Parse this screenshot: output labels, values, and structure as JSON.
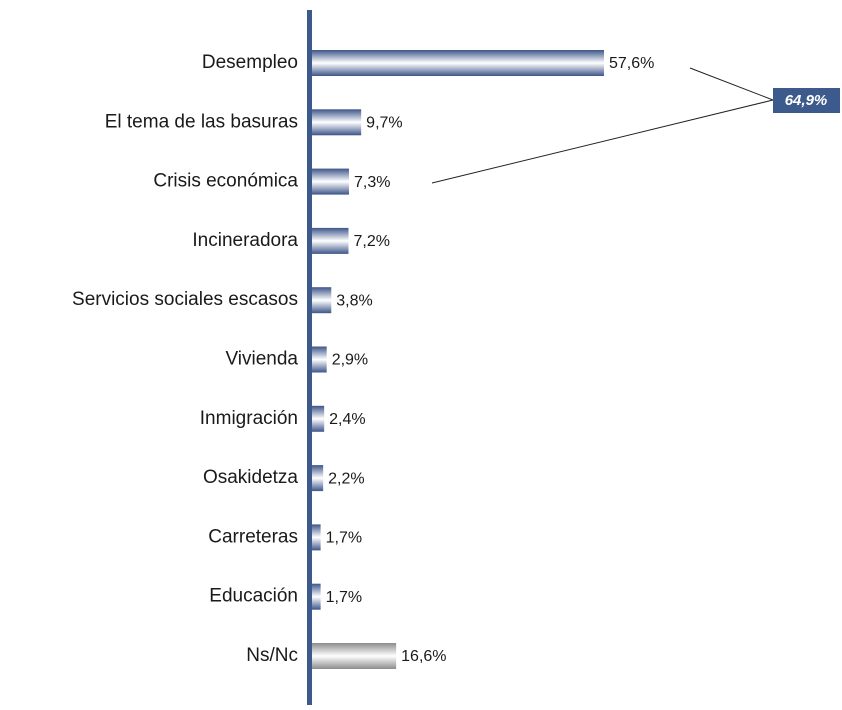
{
  "chart_data": {
    "type": "bar",
    "orientation": "horizontal",
    "categories": [
      "Desempleo",
      "El tema de las basuras",
      "Crisis económica",
      "Incineradora",
      "Servicios sociales escasos",
      "Vivienda",
      "Inmigración",
      "Osakidetza",
      "Carreteras",
      "Educación",
      "Ns/Nc"
    ],
    "values": [
      57.6,
      9.7,
      7.3,
      7.2,
      3.8,
      2.9,
      2.4,
      2.2,
      1.7,
      1.7,
      16.6
    ],
    "value_labels": [
      "57,6%",
      "9,7%",
      "7,3%",
      "7,2%",
      "3,8%",
      "2,9%",
      "2,4%",
      "2,2%",
      "1,7%",
      "1,7%",
      "16,6%"
    ],
    "colors": [
      "#3d5589",
      "#3d5589",
      "#3d5589",
      "#3d5589",
      "#3d5589",
      "#3d5589",
      "#3d5589",
      "#3d5589",
      "#3d5589",
      "#3d5589",
      "#8c8c8c"
    ],
    "axis_color": "#3d5a8c",
    "annotation": {
      "label": "64,9%",
      "color": "#3d5a8c"
    }
  }
}
